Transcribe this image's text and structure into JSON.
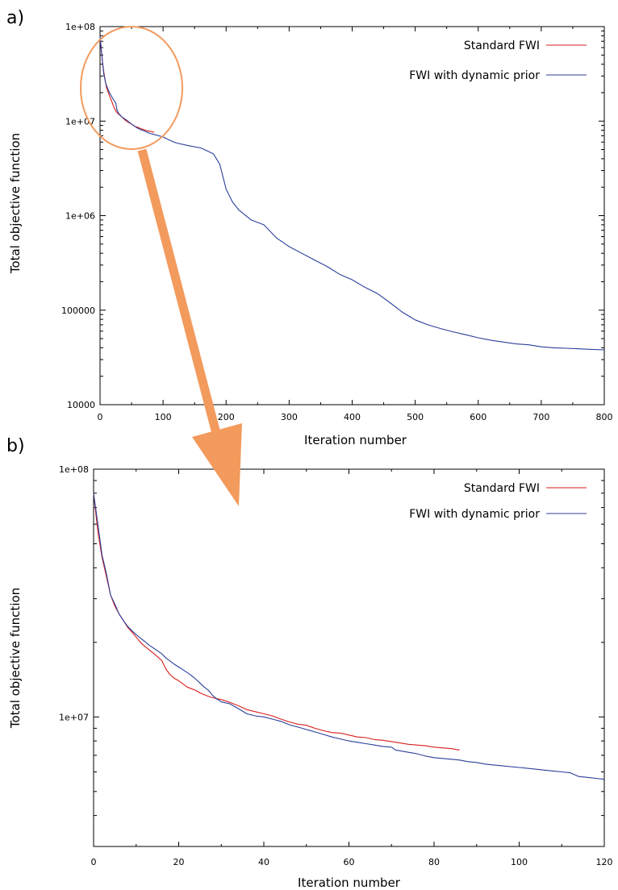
{
  "colors": {
    "standard_fwi": "#d81e1e",
    "dynamic_prior": "#2b3e9a",
    "highlight": "#f39a5d",
    "axis": "#000000"
  },
  "chart_data": [
    {
      "panel_label": "a)",
      "type": "line",
      "xlabel": "Iteration number",
      "ylabel": "Total objective function",
      "xlim": [
        0,
        800
      ],
      "ylim": [
        10000,
        100000000
      ],
      "yscale": "log",
      "grid": false,
      "legend_position": "top-right",
      "x_ticks": [
        0,
        100,
        200,
        300,
        400,
        500,
        600,
        700,
        800
      ],
      "x_tick_labels": [
        "0",
        "100",
        "200",
        "300",
        "400",
        "500",
        "600",
        "700",
        "800"
      ],
      "y_ticks": [
        10000,
        100000,
        1000000,
        10000000,
        100000000
      ],
      "y_tick_labels": [
        "10000",
        "100000",
        "1e+06",
        "1e+07",
        "1e+08"
      ],
      "series": [
        {
          "name": "Standard FWI",
          "color_key": "standard_fwi",
          "x": [
            0,
            2,
            4,
            6,
            8,
            10,
            12,
            15,
            18,
            22,
            26,
            30,
            35,
            40,
            45,
            50,
            55,
            60,
            65,
            70,
            75,
            80,
            86
          ],
          "y": [
            80000000,
            56000000,
            42000000,
            33000000,
            27000000,
            23000000,
            21000000,
            18500000,
            16500000,
            14000000,
            12500000,
            11800000,
            11000000,
            10200000,
            9700000,
            9300000,
            8800000,
            8600000,
            8300000,
            8100000,
            7900000,
            7800000,
            7600000
          ]
        },
        {
          "name": "FWI with dynamic prior",
          "color_key": "dynamic_prior",
          "x": [
            0,
            2,
            4,
            6,
            8,
            10,
            15,
            20,
            25,
            27,
            30,
            35,
            40,
            45,
            50,
            55,
            60,
            65,
            70,
            75,
            80,
            90,
            100,
            110,
            120,
            140,
            160,
            180,
            190,
            200,
            210,
            220,
            240,
            260,
            280,
            300,
            320,
            340,
            360,
            380,
            400,
            420,
            440,
            460,
            480,
            500,
            520,
            540,
            560,
            580,
            600,
            620,
            640,
            660,
            680,
            700,
            720,
            740,
            760,
            780,
            800
          ],
          "y": [
            80000000,
            56000000,
            42000000,
            31000000,
            27000000,
            24000000,
            20000000,
            17500000,
            15500000,
            13000000,
            12000000,
            11000000,
            10500000,
            9900000,
            9300000,
            8800000,
            8400000,
            8100000,
            7900000,
            7600000,
            7400000,
            7100000,
            6800000,
            6300000,
            5900000,
            5500000,
            5200000,
            4500000,
            3500000,
            1900000,
            1400000,
            1150000,
            900000,
            800000,
            580000,
            470000,
            400000,
            340000,
            290000,
            240000,
            210000,
            175000,
            150000,
            120000,
            95000,
            79000,
            70000,
            64000,
            59000,
            55000,
            51000,
            48000,
            46000,
            44000,
            43000,
            41000,
            40000,
            39500,
            39000,
            38500,
            38000
          ]
        }
      ]
    },
    {
      "panel_label": "b)",
      "type": "line",
      "xlabel": "Iteration number",
      "ylabel": "Total objective function",
      "xlim": [
        0,
        120
      ],
      "ylim": [
        3000000,
        100000000
      ],
      "yscale": "log",
      "grid": false,
      "legend_position": "top-right",
      "x_ticks": [
        0,
        20,
        40,
        60,
        80,
        100,
        120
      ],
      "x_tick_labels": [
        "0",
        "20",
        "40",
        "60",
        "80",
        "100",
        "120"
      ],
      "y_ticks": [
        10000000,
        100000000
      ],
      "y_tick_labels": [
        "1e+07",
        "1e+08"
      ],
      "series": [
        {
          "name": "Standard FWI",
          "color_key": "standard_fwi",
          "x": [
            0,
            1,
            2,
            3,
            4,
            5,
            6,
            7,
            8,
            9,
            10,
            11,
            12,
            13,
            14,
            15,
            16,
            17,
            18,
            19,
            20,
            21,
            22,
            23,
            24,
            25,
            26,
            27,
            28,
            29,
            30,
            32,
            34,
            36,
            38,
            40,
            42,
            44,
            46,
            48,
            50,
            52,
            54,
            56,
            58,
            60,
            62,
            64,
            66,
            68,
            70,
            72,
            74,
            76,
            78,
            80,
            82,
            84,
            86
          ],
          "y": [
            80000000,
            56000000,
            44000000,
            37000000,
            31000000,
            28000000,
            26000000,
            24500000,
            23000000,
            22000000,
            21000000,
            20000000,
            19300000,
            18700000,
            18100000,
            17500000,
            16900000,
            15600000,
            14800000,
            14300000,
            14000000,
            13600000,
            13200000,
            13000000,
            12800000,
            12500000,
            12300000,
            12100000,
            11950000,
            11850000,
            11750000,
            11450000,
            11100000,
            10700000,
            10500000,
            10300000,
            10100000,
            9800000,
            9550000,
            9350000,
            9250000,
            9000000,
            8800000,
            8650000,
            8600000,
            8450000,
            8300000,
            8250000,
            8100000,
            8050000,
            7950000,
            7850000,
            7750000,
            7700000,
            7650000,
            7550000,
            7500000,
            7450000,
            7350000
          ]
        },
        {
          "name": "FWI with dynamic prior",
          "color_key": "dynamic_prior",
          "x": [
            0,
            1,
            2,
            3,
            4,
            5,
            6,
            7,
            8,
            9,
            10,
            11,
            12,
            13,
            14,
            15,
            16,
            17,
            18,
            19,
            20,
            21,
            22,
            23,
            24,
            25,
            26,
            27,
            28,
            29,
            30,
            32,
            34,
            36,
            38,
            40,
            42,
            44,
            46,
            48,
            50,
            52,
            54,
            56,
            58,
            60,
            62,
            64,
            66,
            68,
            70,
            71,
            72,
            74,
            76,
            78,
            80,
            82,
            84,
            86,
            88,
            90,
            92,
            94,
            96,
            98,
            100,
            102,
            104,
            106,
            108,
            110,
            112,
            114,
            116,
            118,
            120
          ],
          "y": [
            80000000,
            60000000,
            45000000,
            38000000,
            31000000,
            28500000,
            26000000,
            24500000,
            23200000,
            22300000,
            21500000,
            20800000,
            20200000,
            19500000,
            19000000,
            18500000,
            18000000,
            17300000,
            16800000,
            16300000,
            15900000,
            15500000,
            15100000,
            14700000,
            14200000,
            13700000,
            13200000,
            12800000,
            12200000,
            11800000,
            11500000,
            11300000,
            10800000,
            10300000,
            10100000,
            10000000,
            9800000,
            9600000,
            9300000,
            9100000,
            8900000,
            8700000,
            8500000,
            8300000,
            8150000,
            8000000,
            7900000,
            7800000,
            7700000,
            7600000,
            7550000,
            7350000,
            7300000,
            7200000,
            7100000,
            6950000,
            6850000,
            6800000,
            6750000,
            6700000,
            6600000,
            6550000,
            6450000,
            6400000,
            6350000,
            6300000,
            6250000,
            6200000,
            6150000,
            6100000,
            6050000,
            6000000,
            5950000,
            5750000,
            5700000,
            5650000,
            5600000
          ]
        }
      ]
    }
  ]
}
